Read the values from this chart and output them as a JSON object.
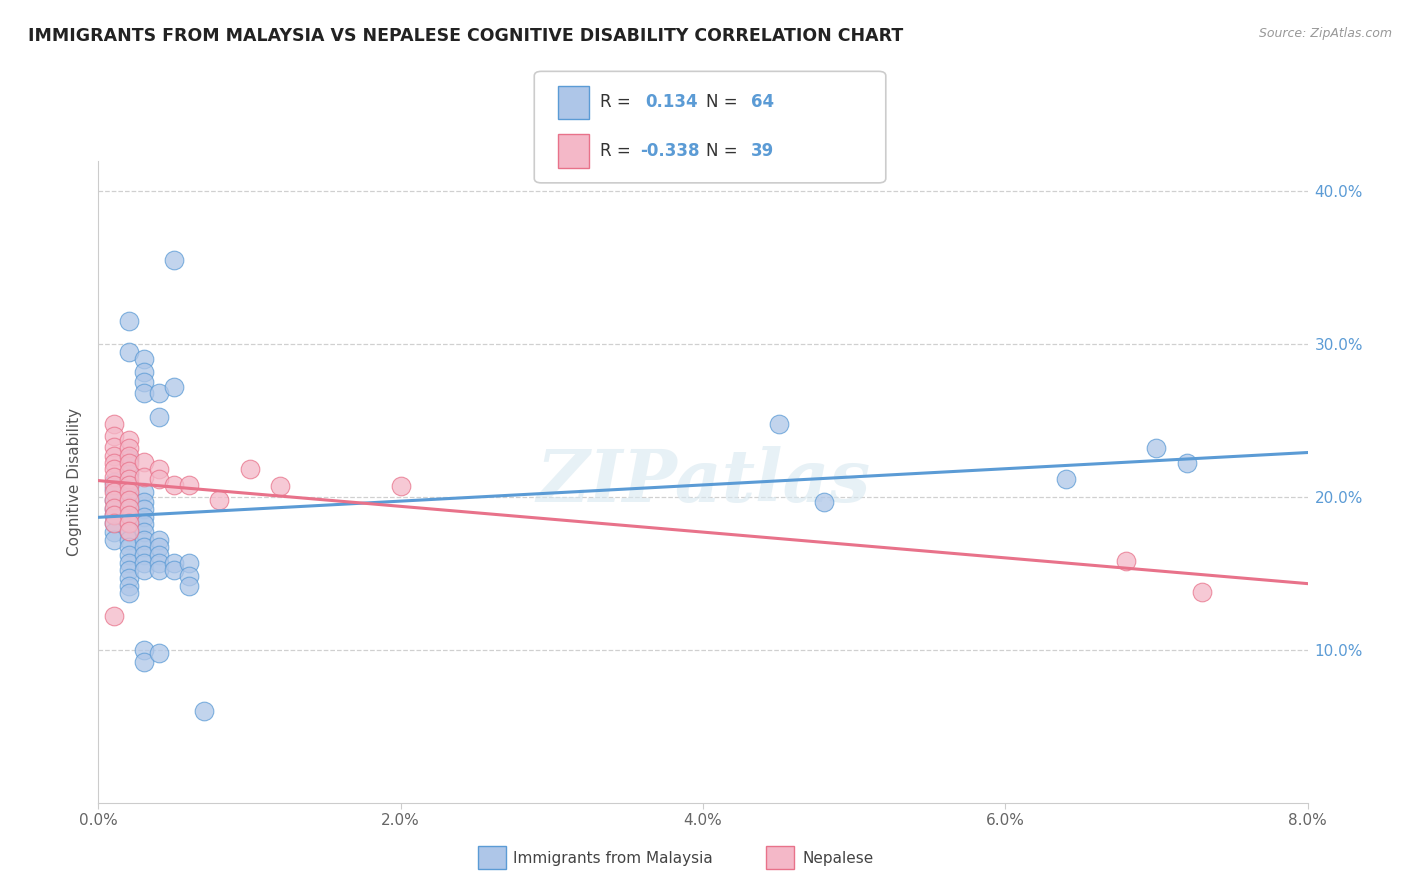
{
  "title": "IMMIGRANTS FROM MALAYSIA VS NEPALESE COGNITIVE DISABILITY CORRELATION CHART",
  "source": "Source: ZipAtlas.com",
  "ylabel": "Cognitive Disability",
  "xmin": 0.0,
  "xmax": 0.08,
  "ymin": 0.0,
  "ymax": 0.42,
  "x_tick_labels": [
    "0.0%",
    "",
    "2.0%",
    "",
    "4.0%",
    "",
    "6.0%",
    "",
    "8.0%"
  ],
  "x_tick_values": [
    0.0,
    0.01,
    0.02,
    0.03,
    0.04,
    0.05,
    0.06,
    0.07,
    0.08
  ],
  "y_tick_labels": [
    "10.0%",
    "20.0%",
    "30.0%",
    "40.0%"
  ],
  "y_tick_values": [
    0.1,
    0.2,
    0.3,
    0.4
  ],
  "blue_color": "#5b9bd5",
  "pink_color": "#e8728a",
  "blue_scatter_color": "#aec6e8",
  "pink_scatter_color": "#f4b8c8",
  "blue_R": 0.134,
  "blue_N": 64,
  "pink_R": -0.338,
  "pink_N": 39,
  "blue_points": [
    [
      0.001,
      0.21
    ],
    [
      0.001,
      0.205
    ],
    [
      0.001,
      0.198
    ],
    [
      0.001,
      0.192
    ],
    [
      0.001,
      0.188
    ],
    [
      0.001,
      0.183
    ],
    [
      0.001,
      0.177
    ],
    [
      0.001,
      0.172
    ],
    [
      0.002,
      0.315
    ],
    [
      0.002,
      0.295
    ],
    [
      0.002,
      0.225
    ],
    [
      0.002,
      0.215
    ],
    [
      0.002,
      0.208
    ],
    [
      0.002,
      0.2
    ],
    [
      0.002,
      0.194
    ],
    [
      0.002,
      0.188
    ],
    [
      0.002,
      0.183
    ],
    [
      0.002,
      0.177
    ],
    [
      0.002,
      0.172
    ],
    [
      0.002,
      0.167
    ],
    [
      0.002,
      0.162
    ],
    [
      0.002,
      0.157
    ],
    [
      0.002,
      0.152
    ],
    [
      0.002,
      0.147
    ],
    [
      0.002,
      0.142
    ],
    [
      0.002,
      0.137
    ],
    [
      0.003,
      0.29
    ],
    [
      0.003,
      0.282
    ],
    [
      0.003,
      0.275
    ],
    [
      0.003,
      0.268
    ],
    [
      0.003,
      0.203
    ],
    [
      0.003,
      0.197
    ],
    [
      0.003,
      0.192
    ],
    [
      0.003,
      0.187
    ],
    [
      0.003,
      0.182
    ],
    [
      0.003,
      0.177
    ],
    [
      0.003,
      0.172
    ],
    [
      0.003,
      0.167
    ],
    [
      0.003,
      0.162
    ],
    [
      0.003,
      0.157
    ],
    [
      0.003,
      0.152
    ],
    [
      0.003,
      0.1
    ],
    [
      0.003,
      0.092
    ],
    [
      0.004,
      0.268
    ],
    [
      0.004,
      0.252
    ],
    [
      0.004,
      0.172
    ],
    [
      0.004,
      0.167
    ],
    [
      0.004,
      0.162
    ],
    [
      0.004,
      0.157
    ],
    [
      0.004,
      0.152
    ],
    [
      0.004,
      0.098
    ],
    [
      0.005,
      0.355
    ],
    [
      0.005,
      0.272
    ],
    [
      0.005,
      0.157
    ],
    [
      0.005,
      0.152
    ],
    [
      0.006,
      0.157
    ],
    [
      0.006,
      0.148
    ],
    [
      0.006,
      0.142
    ],
    [
      0.007,
      0.06
    ],
    [
      0.045,
      0.248
    ],
    [
      0.048,
      0.197
    ],
    [
      0.064,
      0.212
    ],
    [
      0.07,
      0.232
    ],
    [
      0.072,
      0.222
    ]
  ],
  "pink_points": [
    [
      0.001,
      0.248
    ],
    [
      0.001,
      0.24
    ],
    [
      0.001,
      0.233
    ],
    [
      0.001,
      0.227
    ],
    [
      0.001,
      0.222
    ],
    [
      0.001,
      0.218
    ],
    [
      0.001,
      0.213
    ],
    [
      0.001,
      0.208
    ],
    [
      0.001,
      0.203
    ],
    [
      0.001,
      0.198
    ],
    [
      0.001,
      0.193
    ],
    [
      0.001,
      0.188
    ],
    [
      0.001,
      0.183
    ],
    [
      0.001,
      0.122
    ],
    [
      0.002,
      0.237
    ],
    [
      0.002,
      0.232
    ],
    [
      0.002,
      0.227
    ],
    [
      0.002,
      0.222
    ],
    [
      0.002,
      0.217
    ],
    [
      0.002,
      0.212
    ],
    [
      0.002,
      0.208
    ],
    [
      0.002,
      0.203
    ],
    [
      0.002,
      0.198
    ],
    [
      0.002,
      0.193
    ],
    [
      0.002,
      0.188
    ],
    [
      0.002,
      0.183
    ],
    [
      0.002,
      0.178
    ],
    [
      0.003,
      0.223
    ],
    [
      0.003,
      0.213
    ],
    [
      0.004,
      0.218
    ],
    [
      0.004,
      0.212
    ],
    [
      0.005,
      0.208
    ],
    [
      0.006,
      0.208
    ],
    [
      0.008,
      0.198
    ],
    [
      0.01,
      0.218
    ],
    [
      0.012,
      0.207
    ],
    [
      0.02,
      0.207
    ],
    [
      0.068,
      0.158
    ],
    [
      0.073,
      0.138
    ]
  ],
  "watermark": "ZIPatlas",
  "grid_color": "#d0d0d0",
  "background_color": "#ffffff"
}
